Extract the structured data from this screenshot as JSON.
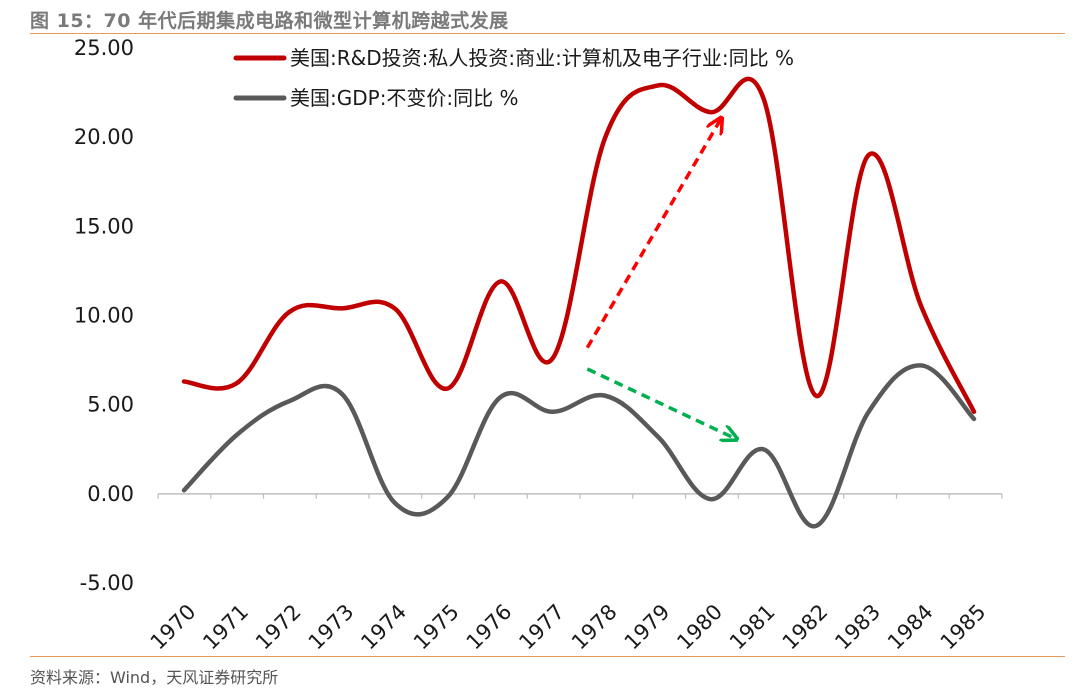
{
  "figure": {
    "title": "图 15：70 年代后期集成电路和微型计算机跨越式发展",
    "source": "资料来源：Wind，天风证券研究所"
  },
  "chart_data": {
    "type": "line",
    "title": "图 15：70 年代后期集成电路和微型计算机跨越式发展",
    "xlabel": "",
    "ylabel": "",
    "categories": [
      "1970",
      "1971",
      "1972",
      "1973",
      "1974",
      "1975",
      "1976",
      "1977",
      "1978",
      "1979",
      "1980",
      "1981",
      "1982",
      "1983",
      "1984",
      "1985"
    ],
    "y_ticks": [
      "25.00",
      "20.00",
      "15.00",
      "10.00",
      "5.00",
      "0.00",
      "-5.00"
    ],
    "ylim": [
      -5,
      25
    ],
    "grid": false,
    "legend_position": "top-left",
    "series": [
      {
        "name": "美国:R&D投资:私人投资:商业:计算机及电子行业:同比 %",
        "color": "#c00000",
        "values": [
          6.3,
          6.2,
          10.2,
          10.4,
          10.4,
          5.9,
          11.9,
          7.6,
          20.0,
          22.9,
          21.4,
          22.2,
          5.5,
          19.0,
          10.5,
          4.6
        ]
      },
      {
        "name": "美国:GDP:不变价:同比 %",
        "color": "#595959",
        "values": [
          0.2,
          3.3,
          5.2,
          5.6,
          -0.5,
          -0.2,
          5.4,
          4.6,
          5.5,
          3.2,
          -0.3,
          2.5,
          -1.8,
          4.6,
          7.2,
          4.2
        ]
      }
    ],
    "annotations": [
      {
        "type": "arrow",
        "style": "dashed",
        "color": "#ff0000",
        "from": {
          "x": "1978",
          "y": 8.2
        },
        "to": {
          "x": "1980",
          "y": 21.0
        },
        "meaning": "upward jump"
      },
      {
        "type": "arrow",
        "style": "dashed",
        "color": "#00b050",
        "from": {
          "x": "1978",
          "y": 7.0
        },
        "to": {
          "x": "1981",
          "y": 3.1
        },
        "meaning": "downward move"
      }
    ]
  }
}
